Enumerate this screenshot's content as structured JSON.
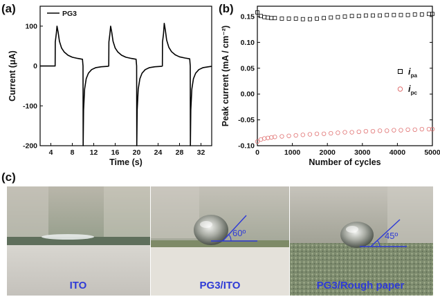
{
  "panels": {
    "a": {
      "label": "(a)"
    },
    "b": {
      "label": "(b)"
    },
    "c": {
      "label": "(c)"
    }
  },
  "chart_data": [
    {
      "panel": "a",
      "type": "line",
      "title": "",
      "xlabel": "Time (s)",
      "ylabel": "Current (μA)",
      "xlim": [
        2,
        34
      ],
      "ylim": [
        -200,
        150
      ],
      "xticks": [
        4,
        8,
        12,
        16,
        20,
        24,
        28,
        32
      ],
      "yticks": [
        -200,
        -100,
        0,
        100
      ],
      "legend": {
        "position": "top-left",
        "entries": [
          "PG3"
        ]
      },
      "grid": false,
      "series": [
        {
          "name": "PG3",
          "color": "#000000",
          "x": [
            2.0,
            4.8,
            4.82,
            5.0,
            5.15,
            5.35,
            5.6,
            6.0,
            6.5,
            7.2,
            8.0,
            9.0,
            9.9,
            10.0,
            10.02,
            10.1,
            10.3,
            10.6,
            11.0,
            11.6,
            12.4,
            13.4,
            14.6,
            14.8,
            14.82,
            15.0,
            15.15,
            15.35,
            15.6,
            16.0,
            16.5,
            17.2,
            18.0,
            19.0,
            19.9,
            20.0,
            20.02,
            20.1,
            20.3,
            20.6,
            21.0,
            21.6,
            22.4,
            23.4,
            24.6,
            24.8,
            24.82,
            25.0,
            25.15,
            25.35,
            25.6,
            26.0,
            26.5,
            27.2,
            28.0,
            29.0,
            29.9,
            30.0,
            30.02,
            30.1,
            30.3,
            30.6,
            31.0,
            31.6,
            32.4,
            33.4,
            34.0
          ],
          "y": [
            0,
            0,
            60,
            80,
            100,
            85,
            62,
            45,
            35,
            27,
            22,
            19,
            17,
            0,
            -200,
            -110,
            -58,
            -32,
            -18,
            -9,
            -4,
            -2,
            -1,
            0,
            60,
            80,
            100,
            85,
            62,
            45,
            35,
            27,
            22,
            19,
            17,
            0,
            -200,
            -110,
            -58,
            -32,
            -18,
            -9,
            -4,
            -2,
            -1,
            0,
            60,
            80,
            107,
            90,
            65,
            47,
            36,
            28,
            23,
            20,
            18,
            0,
            -200,
            -110,
            -58,
            -32,
            -18,
            -9,
            -4,
            -2,
            -1
          ]
        }
      ]
    },
    {
      "panel": "b",
      "type": "scatter",
      "title": "",
      "xlabel": "Number of cycles",
      "ylabel": "Peak current (mA / cm⁻²)",
      "xlim": [
        0,
        5000
      ],
      "ylim": [
        -0.1,
        0.17
      ],
      "xticks": [
        0,
        1000,
        2000,
        3000,
        4000,
        5000
      ],
      "yticks": [
        -0.1,
        -0.05,
        0.0,
        0.05,
        0.1,
        0.15
      ],
      "legend": {
        "position": "right",
        "entries": [
          "i_pa",
          "i_pc"
        ]
      },
      "grid": false,
      "series": [
        {
          "name": "i_pa",
          "marker": "square",
          "color": "#000000",
          "x": [
            0,
            100,
            200,
            300,
            400,
            500,
            700,
            900,
            1100,
            1300,
            1500,
            1700,
            1900,
            2100,
            2300,
            2500,
            2700,
            2900,
            3100,
            3300,
            3500,
            3700,
            3900,
            4100,
            4300,
            4500,
            4700,
            4900,
            5000
          ],
          "y": [
            0.158,
            0.151,
            0.149,
            0.148,
            0.147,
            0.147,
            0.146,
            0.146,
            0.146,
            0.145,
            0.145,
            0.146,
            0.147,
            0.148,
            0.149,
            0.15,
            0.151,
            0.151,
            0.152,
            0.152,
            0.152,
            0.153,
            0.153,
            0.153,
            0.153,
            0.154,
            0.154,
            0.155,
            0.155
          ]
        },
        {
          "name": "i_pc",
          "marker": "circle",
          "color": "#e07070",
          "x": [
            0,
            100,
            200,
            300,
            400,
            500,
            700,
            900,
            1100,
            1300,
            1500,
            1700,
            1900,
            2100,
            2300,
            2500,
            2700,
            2900,
            3100,
            3300,
            3500,
            3700,
            3900,
            4100,
            4300,
            4500,
            4700,
            4900,
            5000
          ],
          "y": [
            -0.092,
            -0.088,
            -0.086,
            -0.085,
            -0.084,
            -0.083,
            -0.082,
            -0.081,
            -0.08,
            -0.079,
            -0.078,
            -0.077,
            -0.077,
            -0.076,
            -0.075,
            -0.074,
            -0.074,
            -0.073,
            -0.072,
            -0.072,
            -0.071,
            -0.071,
            -0.07,
            -0.07,
            -0.069,
            -0.069,
            -0.068,
            -0.068,
            -0.068
          ]
        }
      ]
    }
  ],
  "photos": [
    {
      "label": "ITO"
    },
    {
      "label": "PG3/ITO",
      "angle": "60º"
    },
    {
      "label": "PG3/Rough paper",
      "angle": "45º"
    }
  ]
}
